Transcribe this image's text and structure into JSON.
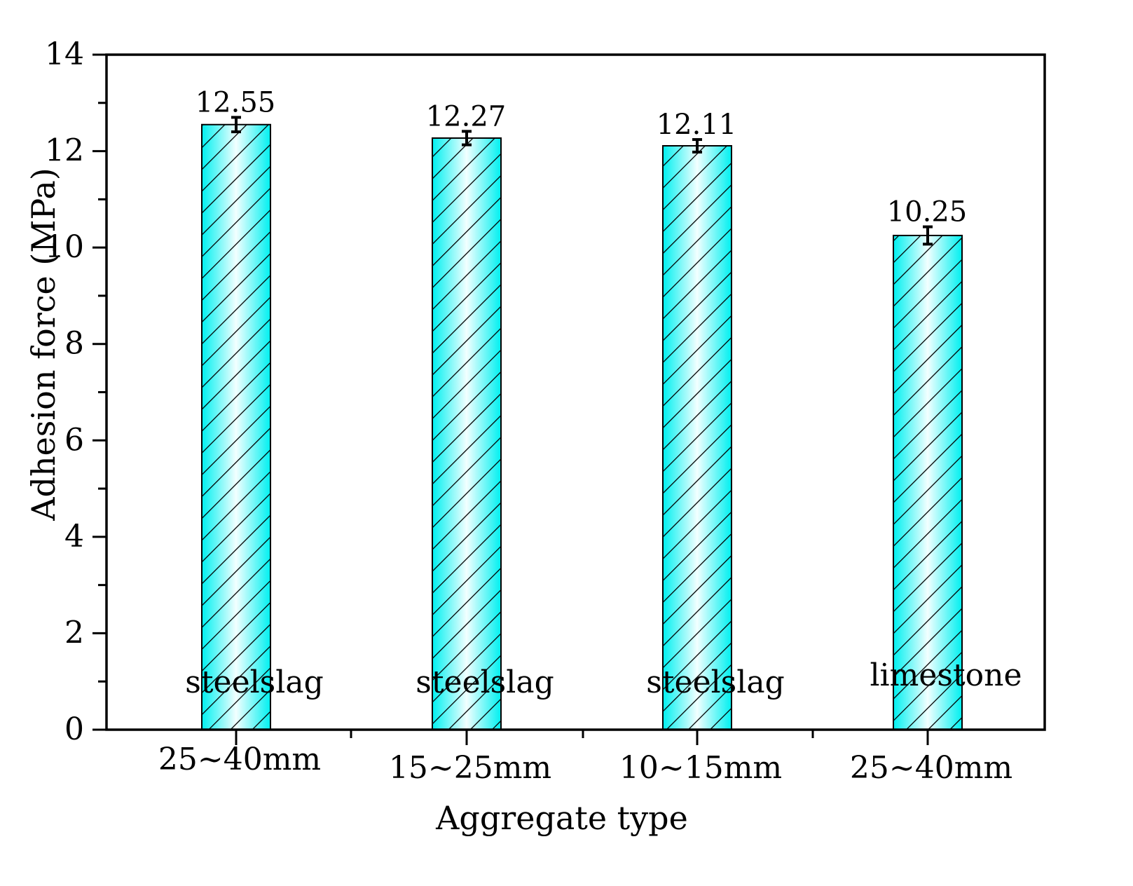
{
  "chart_data": {
    "type": "bar",
    "title": "",
    "xlabel": "Aggregate type",
    "ylabel": "Adhesion force (MPa)",
    "ylim": [
      0,
      14
    ],
    "yticks": [
      0,
      2,
      4,
      6,
      8,
      10,
      12,
      14
    ],
    "grid": false,
    "legend": null,
    "categories": [
      "25~40mm",
      "15~25mm",
      "10~15mm",
      "25~40mm"
    ],
    "bar_labels": [
      "steelslag",
      "steelslag",
      "steelslag",
      "limestone"
    ],
    "values": [
      12.55,
      12.27,
      12.11,
      10.25
    ],
    "value_labels": [
      "12.55",
      "12.27",
      "12.11",
      "10.25"
    ],
    "error": [
      0.15,
      0.14,
      0.13,
      0.18
    ],
    "bar_fill": "#00ffff",
    "bar_pattern": "diagonal hatch, black"
  }
}
